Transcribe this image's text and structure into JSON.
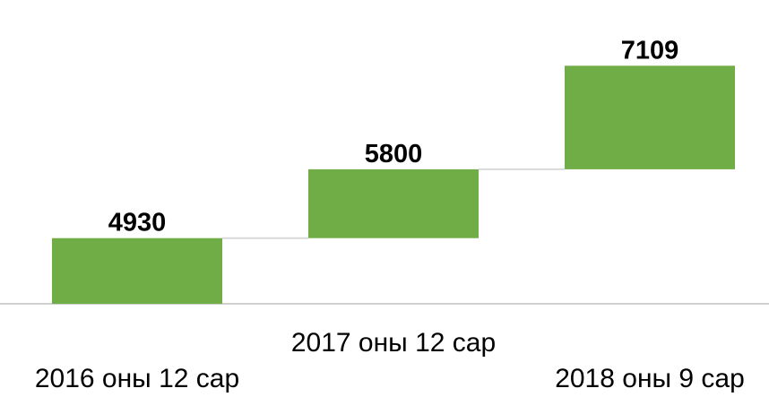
{
  "chart_data": {
    "type": "waterfall",
    "categories": [
      "2016 оны 12 сар",
      "2017 оны 12 сар",
      "2018 оны 9 сар"
    ],
    "values": [
      4930,
      5800,
      7109
    ],
    "color": "#70ad47",
    "ylim": [
      4100,
      7600
    ]
  }
}
